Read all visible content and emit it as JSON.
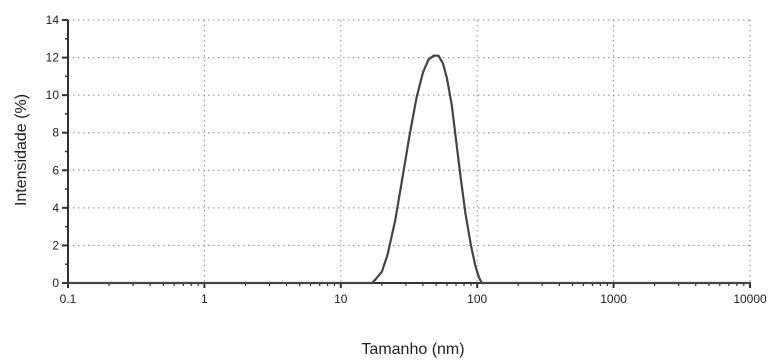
{
  "chart_data": {
    "type": "line",
    "title": "",
    "xlabel": "Tamanho  (nm)",
    "ylabel": "Intensidade  (%)",
    "xscale": "log",
    "xlim": [
      0.1,
      10000
    ],
    "ylim": [
      0,
      14
    ],
    "grid": true,
    "x_ticks": [
      0.1,
      1,
      10,
      100,
      1000,
      10000
    ],
    "x_tick_labels": [
      "0.1",
      "1",
      "10",
      "100",
      "1000",
      "10000"
    ],
    "y_ticks": [
      0,
      2,
      4,
      6,
      8,
      10,
      12,
      14
    ],
    "y_tick_labels": [
      "0",
      "2",
      "4",
      "6",
      "8",
      "10",
      "12",
      "14"
    ],
    "series": [
      {
        "x": [
          0.1,
          0.4,
          1,
          5,
          10,
          17,
          18.5,
          20,
          22,
          25,
          28,
          32,
          36,
          40,
          44,
          48,
          52,
          56,
          60,
          65,
          70,
          76,
          82,
          90,
          97,
          103,
          108,
          113,
          120,
          200,
          1000,
          10000
        ],
        "y": [
          0,
          0,
          0,
          0,
          0,
          0,
          0.3,
          0.6,
          1.5,
          3.3,
          5.4,
          7.9,
          9.9,
          11.2,
          11.9,
          12.1,
          12.1,
          11.7,
          10.9,
          9.5,
          7.6,
          5.5,
          3.7,
          2.0,
          0.9,
          0.3,
          0,
          0,
          0,
          0,
          0,
          0
        ],
        "color": "#444444"
      }
    ]
  }
}
